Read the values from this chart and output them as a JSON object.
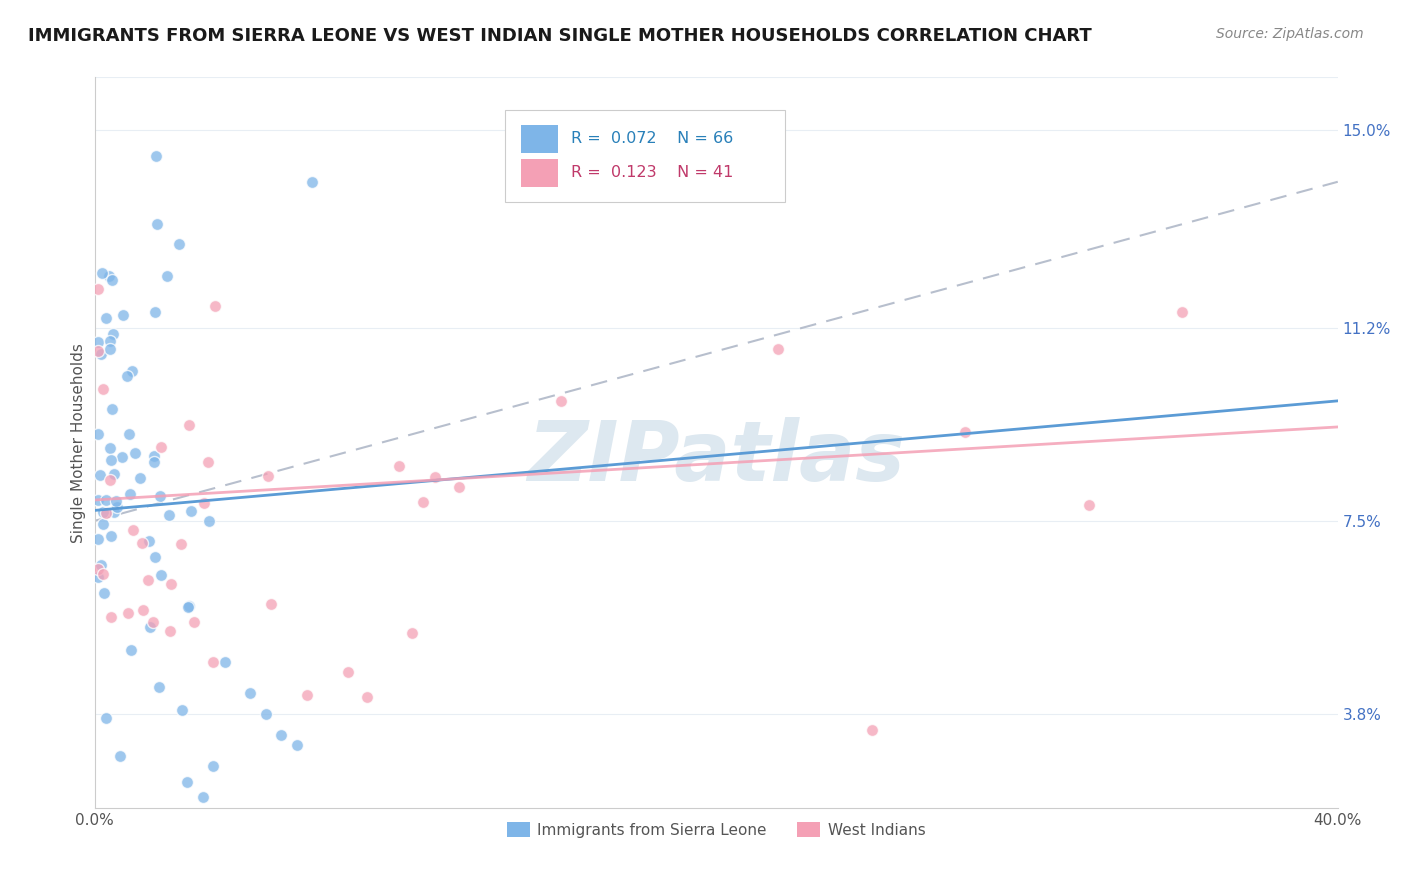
{
  "title": "IMMIGRANTS FROM SIERRA LEONE VS WEST INDIAN SINGLE MOTHER HOUSEHOLDS CORRELATION CHART",
  "source": "Source: ZipAtlas.com",
  "ylabel": "Single Mother Households",
  "ytick_vals": [
    0.038,
    0.075,
    0.112,
    0.15
  ],
  "ytick_labels": [
    "3.8%",
    "7.5%",
    "11.2%",
    "15.0%"
  ],
  "xmin": 0.0,
  "xmax": 0.4,
  "ymin": 0.02,
  "ymax": 0.16,
  "legend_text1": "R = 0.072   N = 66",
  "legend_text2": "R = 0.123   N = 41",
  "series1_color": "#7eb5e8",
  "series2_color": "#f4a0b5",
  "trendline1_color": "#5b9bd5",
  "trendline2_color": "#f4a0b5",
  "dashed_color": "#b0b8c8",
  "watermark": "ZIPatlas",
  "watermark_color": "#dde8f0",
  "grid_color": "#e8eef4",
  "sl_trendline": [
    0.077,
    0.098
  ],
  "wi_trendline": [
    0.079,
    0.093
  ],
  "dashed_trendline": [
    0.075,
    0.14
  ]
}
